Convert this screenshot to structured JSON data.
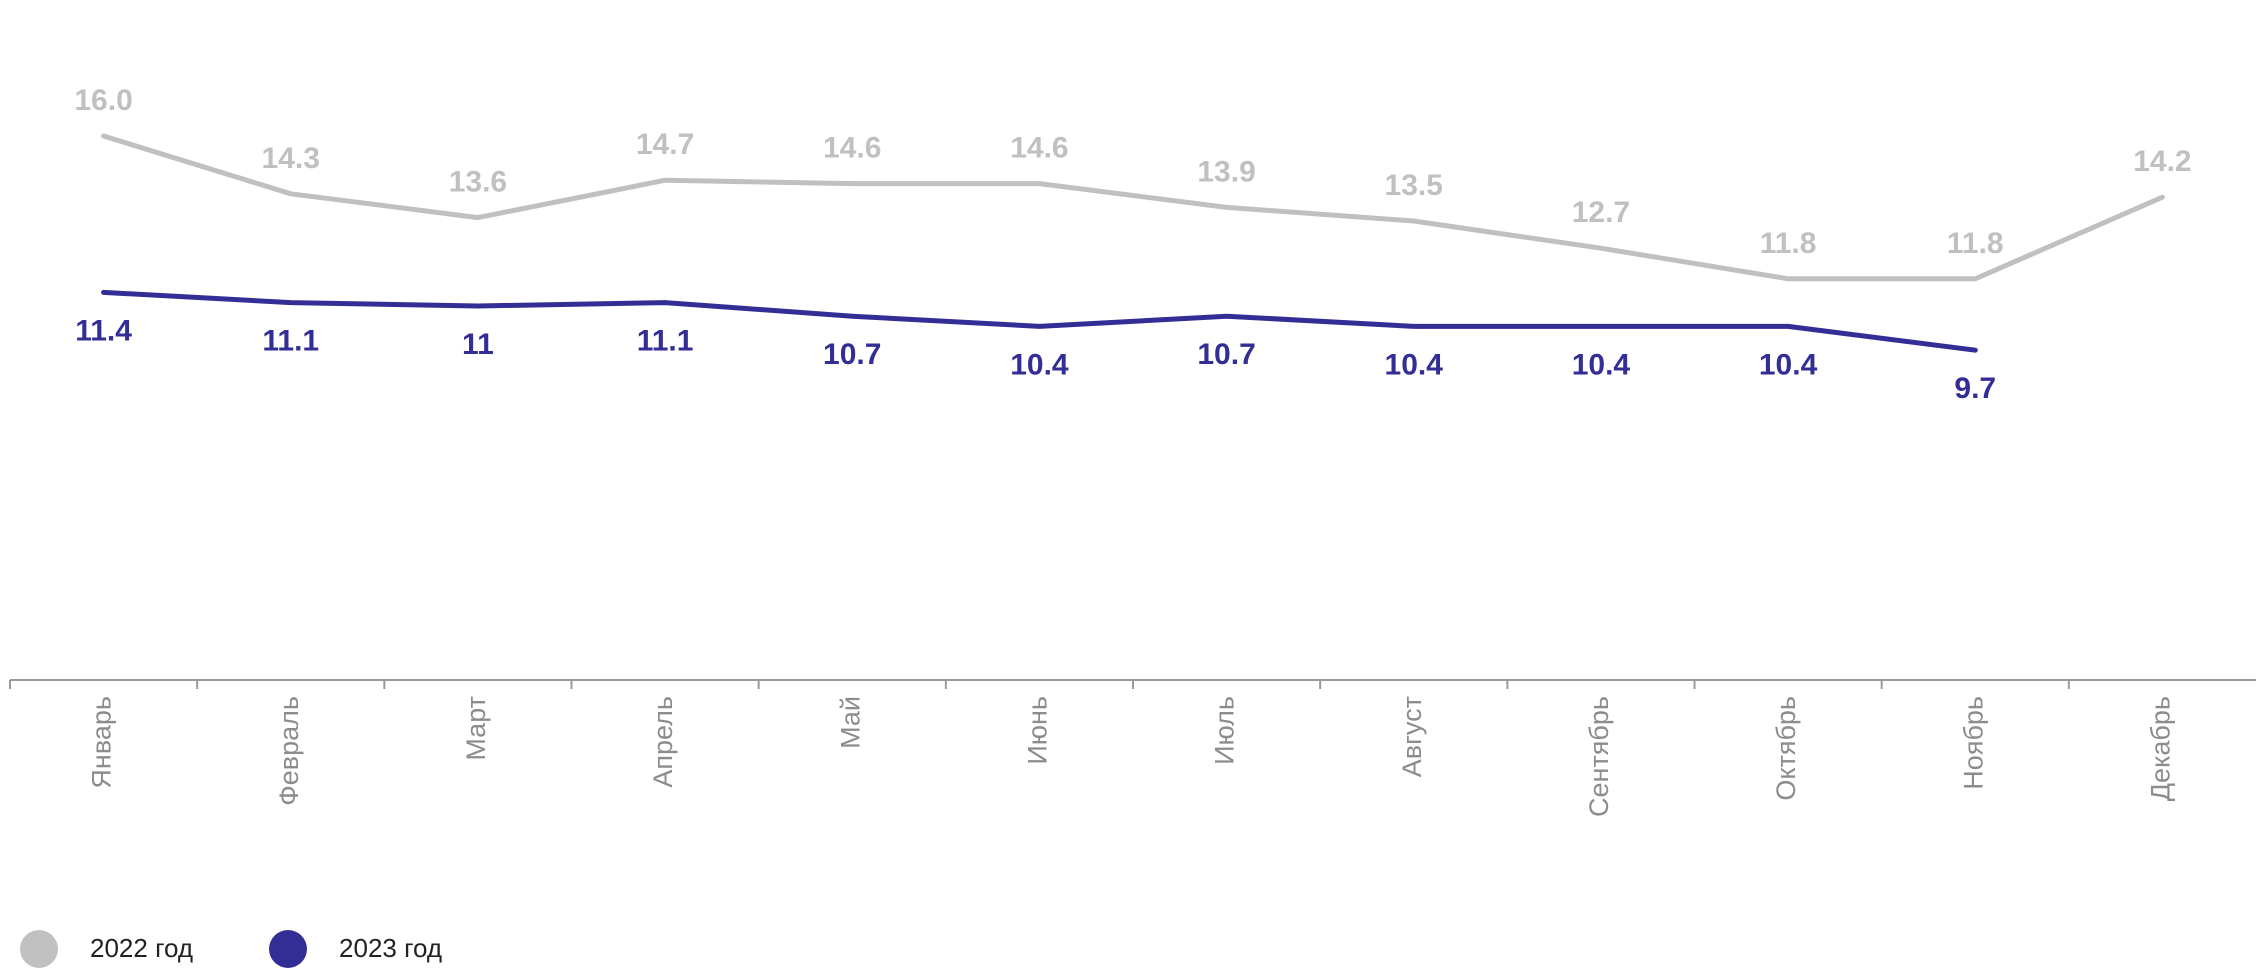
{
  "chart_data": {
    "type": "line",
    "categories": [
      "Январь",
      "Февраль",
      "Март",
      "Апрель",
      "Май",
      "Июнь",
      "Июль",
      "Август",
      "Сентябрь",
      "Октябрь",
      "Ноябрь",
      "Декабрь"
    ],
    "series": [
      {
        "name": "2022 год",
        "color": "#c0c0c0",
        "values": [
          16.0,
          14.3,
          13.6,
          14.7,
          14.6,
          14.6,
          13.9,
          13.5,
          12.7,
          11.8,
          11.8,
          14.2
        ],
        "labels": [
          "16.0",
          "14.3",
          "13.6",
          "14.7",
          "14.6",
          "14.6",
          "13.9",
          "13.5",
          "12.7",
          "11.8",
          "11.8",
          "14.2"
        ],
        "label_position": "above"
      },
      {
        "name": "2023 год",
        "color": "#332e96",
        "values": [
          11.4,
          11.1,
          11.0,
          11.1,
          10.7,
          10.4,
          10.7,
          10.4,
          10.4,
          10.4,
          9.7,
          null
        ],
        "labels": [
          "11.4",
          "11.1",
          "11",
          "11.1",
          "10.7",
          "10.4",
          "10.7",
          "10.4",
          "10.4",
          "10.4",
          "9.7",
          ""
        ],
        "label_position": "below"
      }
    ],
    "ylim": [
      0,
      20
    ],
    "grid": false,
    "legend": "bottom-left",
    "xlabel": "",
    "ylabel": "",
    "title": ""
  }
}
